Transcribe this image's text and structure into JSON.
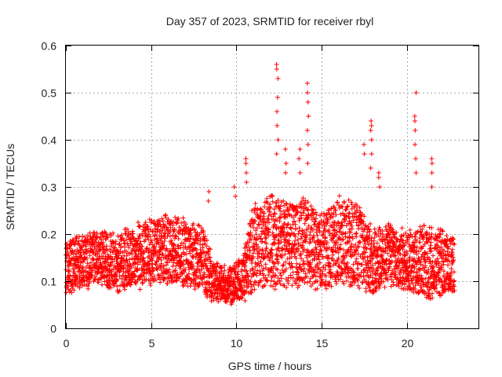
{
  "chart_data": {
    "type": "scatter",
    "title": "Day 357 of 2023, SRMTID for receiver rbyl",
    "xlabel": "GPS time / hours",
    "ylabel": "SRMTID / TECUs",
    "xlim": [
      0,
      24.2
    ],
    "ylim": [
      0,
      0.6
    ],
    "xticks": [
      0,
      5,
      10,
      15,
      20
    ],
    "xtick_labels": [
      "0",
      "5",
      "10",
      "15",
      "20"
    ],
    "yticks": [
      0,
      0.1,
      0.2,
      0.3,
      0.4,
      0.5,
      0.6
    ],
    "ytick_labels": [
      "0",
      "0.1",
      "0.2",
      "0.3",
      "0.4",
      "0.5",
      "0.6"
    ],
    "grid": true,
    "marker": "+",
    "color": "#ff0000",
    "points_generated_from_envelope": true,
    "envelope": [
      {
        "x": 0.0,
        "center": 0.13,
        "spread": 0.05
      },
      {
        "x": 1.0,
        "center": 0.14,
        "spread": 0.05
      },
      {
        "x": 2.0,
        "center": 0.15,
        "spread": 0.05
      },
      {
        "x": 3.0,
        "center": 0.14,
        "spread": 0.05
      },
      {
        "x": 4.0,
        "center": 0.15,
        "spread": 0.06
      },
      {
        "x": 5.0,
        "center": 0.16,
        "spread": 0.06
      },
      {
        "x": 6.0,
        "center": 0.17,
        "spread": 0.06
      },
      {
        "x": 7.0,
        "center": 0.16,
        "spread": 0.06
      },
      {
        "x": 8.0,
        "center": 0.15,
        "spread": 0.06
      },
      {
        "x": 8.6,
        "center": 0.1,
        "spread": 0.04
      },
      {
        "x": 9.5,
        "center": 0.09,
        "spread": 0.03
      },
      {
        "x": 10.3,
        "center": 0.1,
        "spread": 0.04
      },
      {
        "x": 11.0,
        "center": 0.17,
        "spread": 0.08
      },
      {
        "x": 12.0,
        "center": 0.19,
        "spread": 0.09
      },
      {
        "x": 13.0,
        "center": 0.18,
        "spread": 0.08
      },
      {
        "x": 14.0,
        "center": 0.18,
        "spread": 0.08
      },
      {
        "x": 15.0,
        "center": 0.16,
        "spread": 0.07
      },
      {
        "x": 16.0,
        "center": 0.19,
        "spread": 0.08
      },
      {
        "x": 17.0,
        "center": 0.18,
        "spread": 0.08
      },
      {
        "x": 18.0,
        "center": 0.14,
        "spread": 0.06
      },
      {
        "x": 19.0,
        "center": 0.16,
        "spread": 0.06
      },
      {
        "x": 20.0,
        "center": 0.14,
        "spread": 0.05
      },
      {
        "x": 21.0,
        "center": 0.14,
        "spread": 0.07
      },
      {
        "x": 22.0,
        "center": 0.14,
        "spread": 0.06
      },
      {
        "x": 22.8,
        "center": 0.13,
        "spread": 0.05
      }
    ],
    "spikes": [
      {
        "x": 12.4,
        "values": [
          0.56,
          0.55,
          0.53,
          0.49,
          0.46,
          0.43,
          0.4,
          0.37
        ]
      },
      {
        "x": 14.2,
        "values": [
          0.52,
          0.5,
          0.48,
          0.45,
          0.42,
          0.39,
          0.35
        ]
      },
      {
        "x": 17.9,
        "values": [
          0.44,
          0.43,
          0.42,
          0.4,
          0.37,
          0.34
        ]
      },
      {
        "x": 20.5,
        "values": [
          0.5,
          0.45,
          0.44,
          0.42,
          0.39,
          0.36,
          0.33
        ]
      },
      {
        "x": 21.5,
        "values": [
          0.36,
          0.35,
          0.33,
          0.3
        ]
      },
      {
        "x": 10.6,
        "values": [
          0.36,
          0.35,
          0.33,
          0.31
        ]
      },
      {
        "x": 12.9,
        "values": [
          0.38,
          0.35,
          0.33
        ]
      },
      {
        "x": 13.7,
        "values": [
          0.38,
          0.36,
          0.33
        ]
      },
      {
        "x": 17.5,
        "values": [
          0.39,
          0.37
        ]
      },
      {
        "x": 18.4,
        "values": [
          0.33,
          0.32,
          0.3
        ]
      },
      {
        "x": 9.9,
        "values": [
          0.3,
          0.28
        ]
      },
      {
        "x": 8.4,
        "values": [
          0.29,
          0.27
        ]
      }
    ]
  }
}
